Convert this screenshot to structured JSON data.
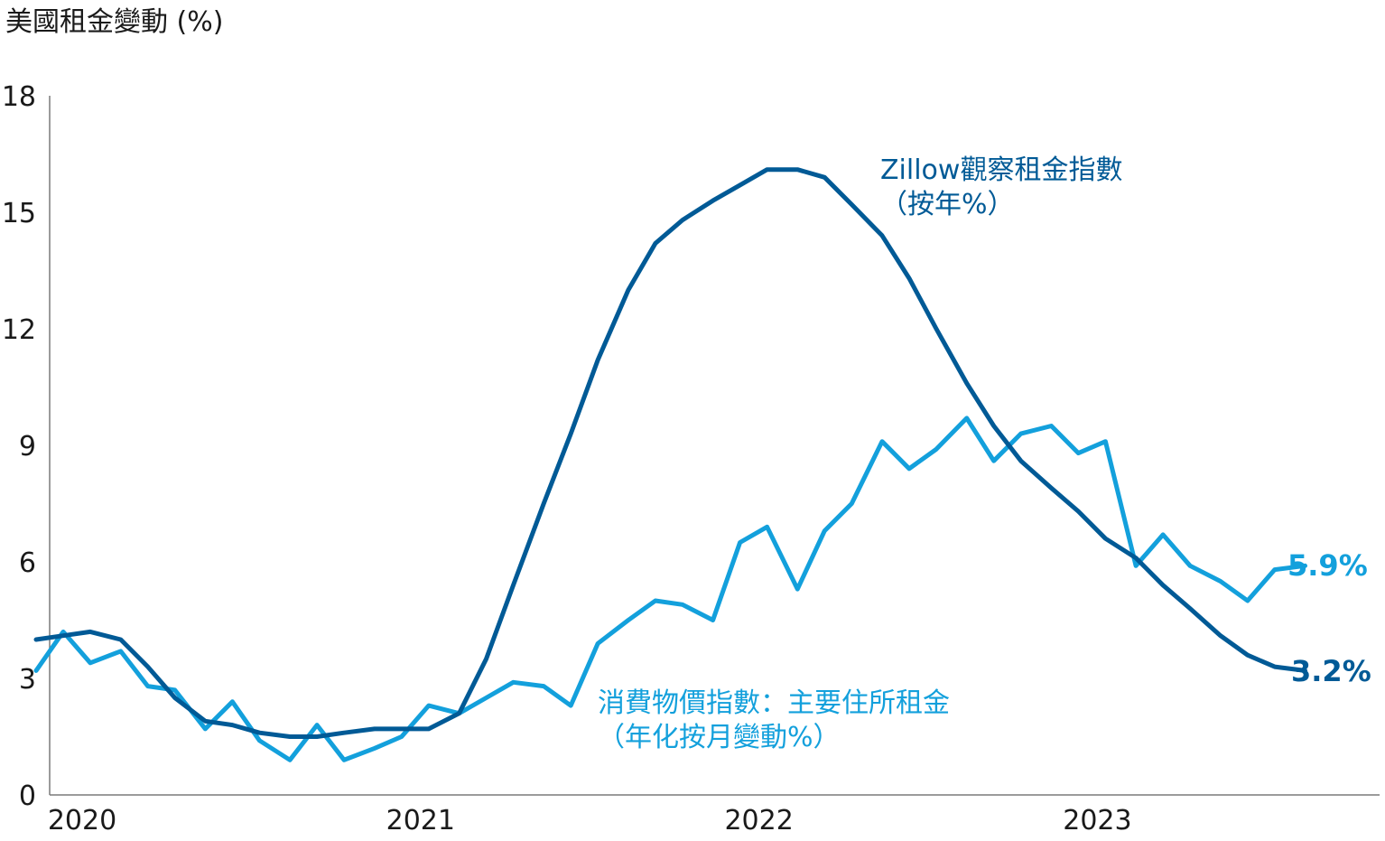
{
  "chart_data": {
    "type": "line",
    "ylabel": "美國租金變動 (%)",
    "ylim": [
      0,
      18
    ],
    "yticks": [
      "0",
      "3",
      "6",
      "9",
      "12",
      "15",
      "18"
    ],
    "xlim": [
      2020,
      2023.93
    ],
    "xticks": [
      {
        "value": 2020,
        "label": "2020"
      },
      {
        "value": 2021,
        "label": "2021"
      },
      {
        "value": 2022,
        "label": "2022"
      },
      {
        "value": 2023,
        "label": "2023"
      }
    ],
    "grid": false,
    "series": [
      {
        "name": "Zillow觀察租金指數（按年%）",
        "label_line1": "Zillow觀察租金指數",
        "label_line2": "（按年%）",
        "color": "#005a96",
        "end_label": "3.2%",
        "x": [
          2019.96,
          2020.04,
          2020.12,
          2020.21,
          2020.29,
          2020.37,
          2020.46,
          2020.54,
          2020.62,
          2020.71,
          2020.79,
          2020.87,
          2020.96,
          2021.04,
          2021.12,
          2021.21,
          2021.29,
          2021.37,
          2021.46,
          2021.54,
          2021.62,
          2021.71,
          2021.79,
          2021.87,
          2021.96,
          2022.04,
          2022.12,
          2022.21,
          2022.29,
          2022.37,
          2022.46,
          2022.54,
          2022.62,
          2022.71,
          2022.79,
          2022.87,
          2022.96,
          2023.04,
          2023.12,
          2023.21,
          2023.29,
          2023.37,
          2023.46,
          2023.54,
          2023.62,
          2023.71
        ],
        "values": [
          4.0,
          4.1,
          4.2,
          4.0,
          3.3,
          2.5,
          1.9,
          1.8,
          1.6,
          1.5,
          1.5,
          1.6,
          1.7,
          1.7,
          1.7,
          2.1,
          3.5,
          5.4,
          7.5,
          9.3,
          11.2,
          13.0,
          14.2,
          14.8,
          15.3,
          15.7,
          16.1,
          16.1,
          15.9,
          15.2,
          14.4,
          13.3,
          12.0,
          10.6,
          9.5,
          8.6,
          7.9,
          7.3,
          6.6,
          6.1,
          5.4,
          4.8,
          4.1,
          3.6,
          3.3,
          3.2
        ]
      },
      {
        "name": "消費物價指數：主要住所租金（年化按月變動%）",
        "label_line1": "消費物價指數：主要住所租金",
        "label_line2": "（年化按月變動%）",
        "color": "#13a0dc",
        "end_label": "5.9%",
        "x": [
          2019.96,
          2020.04,
          2020.12,
          2020.21,
          2020.29,
          2020.37,
          2020.46,
          2020.54,
          2020.62,
          2020.71,
          2020.79,
          2020.87,
          2020.96,
          2021.04,
          2021.12,
          2021.21,
          2021.29,
          2021.37,
          2021.46,
          2021.54,
          2021.62,
          2021.71,
          2021.79,
          2021.87,
          2021.96,
          2022.04,
          2022.12,
          2022.21,
          2022.29,
          2022.37,
          2022.46,
          2022.54,
          2022.62,
          2022.71,
          2022.79,
          2022.87,
          2022.96,
          2023.04,
          2023.12,
          2023.21,
          2023.29,
          2023.37,
          2023.46,
          2023.54,
          2023.62,
          2023.71
        ],
        "values": [
          3.2,
          4.2,
          3.4,
          3.7,
          2.8,
          2.7,
          1.7,
          2.4,
          1.4,
          0.9,
          1.8,
          0.9,
          1.2,
          1.5,
          2.3,
          2.1,
          2.5,
          2.9,
          2.8,
          2.3,
          3.9,
          4.5,
          5.0,
          4.9,
          4.5,
          6.5,
          6.9,
          5.3,
          6.8,
          7.5,
          9.1,
          8.4,
          8.9,
          9.7,
          8.6,
          9.3,
          9.5,
          8.8,
          9.1,
          5.9,
          6.7,
          5.9,
          5.5,
          5.0,
          5.8,
          5.9
        ]
      }
    ]
  }
}
